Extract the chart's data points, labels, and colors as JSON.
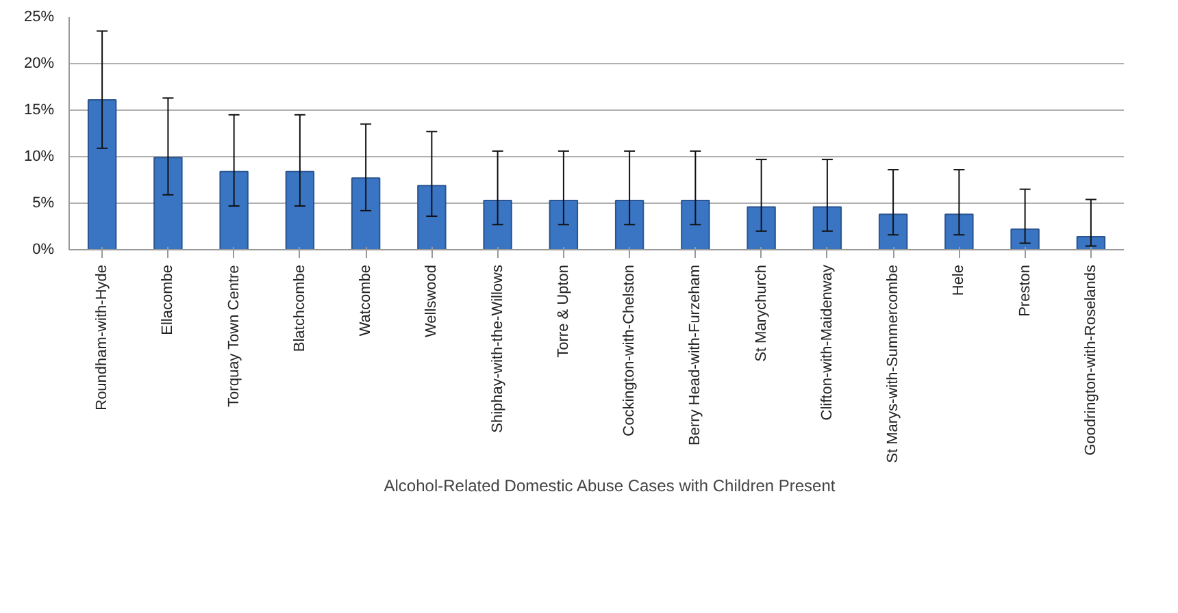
{
  "chart_data": {
    "type": "bar",
    "categories": [
      "Roundham-with-Hyde",
      "Ellacombe",
      "Torquay Town Centre",
      "Blatchcombe",
      "Watcombe",
      "Wellswood",
      "Shiphay-with-the-Willows",
      "Torre & Upton",
      "Cockington-with-Chelston",
      "Berry Head-with-Furzeham",
      "St Marychurch",
      "Clifton-with-Maidenway",
      "St Marys-with-Summercombe",
      "Hele",
      "Preston",
      "Goodrington-with-Roselands"
    ],
    "series": [
      {
        "name": "Alcohol-Related Domestic Abuse Cases with Children Present",
        "color": "#3a75c4",
        "values": [
          16.1,
          9.9,
          8.4,
          8.4,
          7.7,
          6.9,
          5.3,
          5.3,
          5.3,
          5.3,
          4.6,
          4.6,
          3.8,
          3.8,
          2.2,
          1.4
        ],
        "errors": [
          [
            10.9,
            23.5
          ],
          [
            5.9,
            16.3
          ],
          [
            4.7,
            14.5
          ],
          [
            4.7,
            14.5
          ],
          [
            4.2,
            13.5
          ],
          [
            3.6,
            12.7
          ],
          [
            2.7,
            10.6
          ],
          [
            2.7,
            10.6
          ],
          [
            2.7,
            10.6
          ],
          [
            2.7,
            10.6
          ],
          [
            2.0,
            9.7
          ],
          [
            2.0,
            9.7
          ],
          [
            1.6,
            8.6
          ],
          [
            1.6,
            8.6
          ],
          [
            0.7,
            6.5
          ],
          [
            0.4,
            5.4
          ]
        ]
      }
    ],
    "ylim": [
      0,
      25
    ],
    "yticks": [
      {
        "value": 0,
        "label": "0%"
      },
      {
        "value": 5,
        "label": "5%"
      },
      {
        "value": 10,
        "label": "10%"
      },
      {
        "value": 15,
        "label": "15%"
      },
      {
        "value": 20,
        "label": "20%"
      },
      {
        "value": 25,
        "label": "25%"
      }
    ],
    "grid": "y",
    "legend": "bottom"
  }
}
